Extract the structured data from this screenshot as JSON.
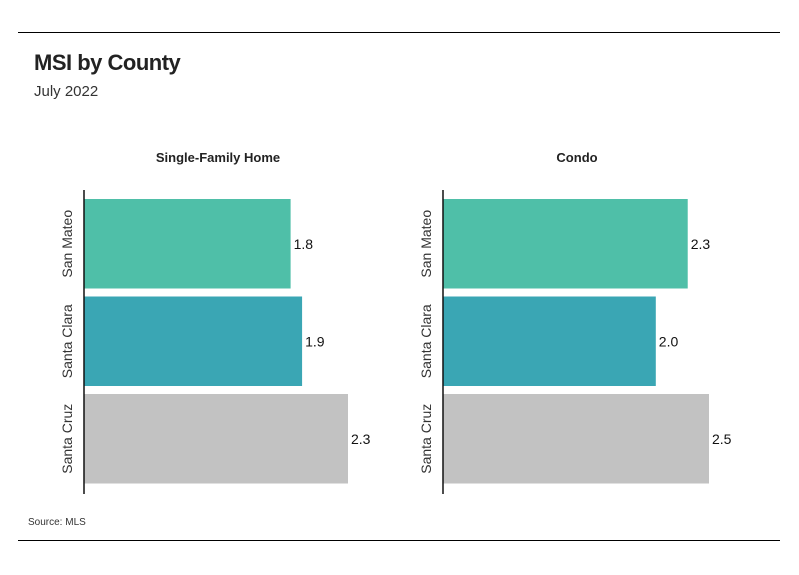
{
  "title": "MSI by County",
  "subtitle": "July 2022",
  "source": "Source:  MLS",
  "chart_data": [
    {
      "type": "bar",
      "orientation": "horizontal",
      "title": "Single-Family Home",
      "categories": [
        "San Mateo",
        "Santa Clara",
        "Santa Cruz"
      ],
      "values": [
        1.8,
        1.9,
        2.3
      ],
      "value_labels": [
        "1.8",
        "1.9",
        "2.3"
      ],
      "colors": [
        "#4fbfa8",
        "#3aa6b4",
        "#c2c2c2"
      ],
      "xlim": [
        0,
        2.3
      ],
      "grid": false,
      "legend": "none"
    },
    {
      "type": "bar",
      "orientation": "horizontal",
      "title": "Condo",
      "categories": [
        "San Mateo",
        "Santa Clara",
        "Santa Cruz"
      ],
      "values": [
        2.3,
        2.0,
        2.5
      ],
      "value_labels": [
        "2.3",
        "2.0",
        "2.5"
      ],
      "colors": [
        "#4fbfa8",
        "#3aa6b4",
        "#c2c2c2"
      ],
      "xlim": [
        0,
        2.5
      ],
      "grid": false,
      "legend": "none"
    }
  ]
}
